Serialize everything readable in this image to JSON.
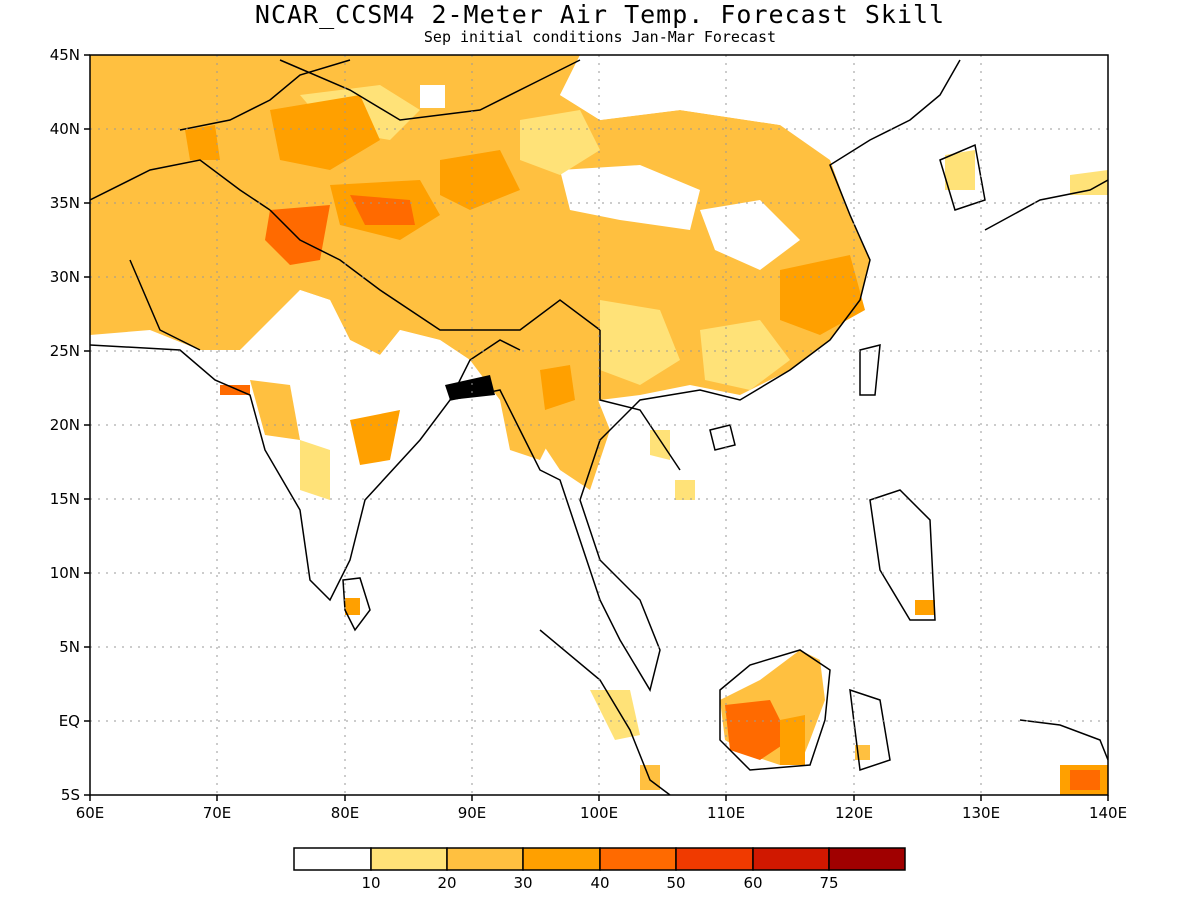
{
  "title": "NCAR_CCSM4 2-Meter Air Temp. Forecast Skill",
  "subtitle": "Sep initial conditions  Jan-Mar Forecast",
  "lat_labels": [
    "45N",
    "40N",
    "35N",
    "30N",
    "25N",
    "20N",
    "15N",
    "10N",
    "5N",
    "EQ",
    "5S"
  ],
  "lon_labels": [
    "60E",
    "70E",
    "80E",
    "90E",
    "100E",
    "110E",
    "120E",
    "130E",
    "140E"
  ],
  "colorbar": {
    "colors": [
      "#ffffff",
      "#ffe278",
      "#ffc040",
      "#ffa000",
      "#ff6a00",
      "#f03a00",
      "#d01800",
      "#a00000"
    ],
    "labels": [
      "10",
      "20",
      "30",
      "40",
      "50",
      "60",
      "75"
    ]
  }
}
